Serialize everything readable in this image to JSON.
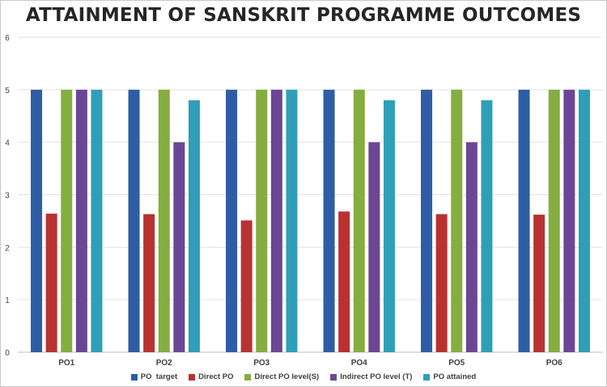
{
  "chart_data": {
    "type": "bar",
    "title": "ATTAINMENT OF SANSKRIT PROGRAMME OUTCOMES",
    "xlabel": "",
    "ylabel": "",
    "ylim": [
      0,
      6
    ],
    "yticks": [
      "0",
      "1",
      "2",
      "3",
      "4",
      "5",
      "6"
    ],
    "grid": true,
    "legend_position": "bottom",
    "categories": [
      "PO1",
      "PO2",
      "PO3",
      "PO4",
      "PO5",
      "PO6"
    ],
    "series": [
      {
        "name": "PO  target",
        "color": "#2e5da6",
        "values": [
          5,
          5,
          5,
          5,
          5,
          5
        ]
      },
      {
        "name": "Direct PO",
        "color": "#b83230",
        "values": [
          2.64,
          2.63,
          2.51,
          2.68,
          2.63,
          2.62
        ]
      },
      {
        "name": "Direct PO level(S)",
        "color": "#86ad3f",
        "values": [
          5,
          5,
          5,
          5,
          5,
          5
        ]
      },
      {
        "name": "Indirect PO level (T)",
        "color": "#6b4694",
        "values": [
          5,
          4,
          5,
          4,
          4,
          5
        ]
      },
      {
        "name": "PO attained",
        "color": "#2f9fb8",
        "values": [
          5,
          4.8,
          5,
          4.8,
          4.8,
          5
        ]
      }
    ]
  }
}
